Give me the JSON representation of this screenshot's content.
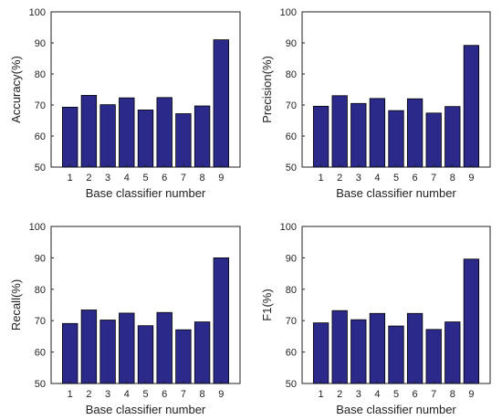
{
  "chart_data": [
    {
      "type": "bar",
      "categories": [
        "1",
        "2",
        "3",
        "4",
        "5",
        "6",
        "7",
        "8",
        "9"
      ],
      "values": [
        69.3,
        73.1,
        70.1,
        72.3,
        68.4,
        72.4,
        67.2,
        69.7,
        91.0
      ],
      "xlabel": "Base classifier number",
      "ylabel": "Accuracy(%)",
      "ylim": [
        50,
        100
      ],
      "yticks": [
        "50",
        "60",
        "70",
        "80",
        "90",
        "100"
      ],
      "grid": false
    },
    {
      "type": "bar",
      "categories": [
        "1",
        "2",
        "3",
        "4",
        "5",
        "6",
        "7",
        "8",
        "9"
      ],
      "values": [
        69.6,
        73.0,
        70.5,
        72.1,
        68.2,
        72.0,
        67.4,
        69.5,
        89.2
      ],
      "xlabel": "Base classifier number",
      "ylabel": "Precision(%)",
      "ylim": [
        50,
        100
      ],
      "yticks": [
        "50",
        "60",
        "70",
        "80",
        "90",
        "100"
      ],
      "grid": false
    },
    {
      "type": "bar",
      "categories": [
        "1",
        "2",
        "3",
        "4",
        "5",
        "6",
        "7",
        "8",
        "9"
      ],
      "values": [
        69.1,
        73.4,
        70.2,
        72.4,
        68.4,
        72.6,
        67.1,
        69.6,
        90.0
      ],
      "xlabel": "Base classifier number",
      "ylabel": "Recall(%)",
      "ylim": [
        50,
        100
      ],
      "yticks": [
        "50",
        "60",
        "70",
        "80",
        "90",
        "100"
      ],
      "grid": false
    },
    {
      "type": "bar",
      "categories": [
        "1",
        "2",
        "3",
        "4",
        "5",
        "6",
        "7",
        "8",
        "9"
      ],
      "values": [
        69.3,
        73.2,
        70.3,
        72.3,
        68.3,
        72.3,
        67.2,
        69.6,
        89.6
      ],
      "xlabel": "Base classifier number",
      "ylabel": "F1(%)",
      "ylim": [
        50,
        100
      ],
      "yticks": [
        "50",
        "60",
        "70",
        "80",
        "90",
        "100"
      ],
      "grid": false
    }
  ],
  "colors": {
    "bar_fill": "#2b2a8a",
    "bar_stroke": "#000000",
    "axis": "#222222"
  }
}
